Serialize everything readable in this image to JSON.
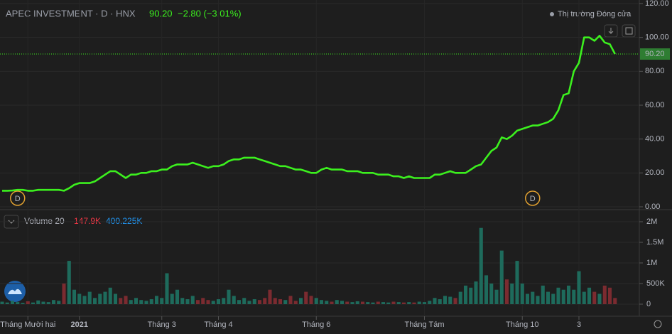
{
  "chart_data": {
    "type": "line",
    "title": "APEC INVESTMENT · D · HNX",
    "last_price": "90.20",
    "change": "−2.80 (−3.01%)",
    "status": "Thị trường Đóng cửa",
    "color": "#3cf01e",
    "ylim": [
      0,
      120
    ],
    "yticks": [
      {
        "value": 0,
        "label": "0.00"
      },
      {
        "value": 20,
        "label": "20.00"
      },
      {
        "value": 40,
        "label": "40.00"
      },
      {
        "value": 60,
        "label": "60.00"
      },
      {
        "value": 80,
        "label": "80.00"
      },
      {
        "value": 100,
        "label": "100.00"
      },
      {
        "value": 120,
        "label": "120.00"
      }
    ],
    "xticks": [
      {
        "value": 5,
        "label": "Tháng Mười hai"
      },
      {
        "value": 15,
        "label": "2021"
      },
      {
        "value": 31,
        "label": "Tháng 3"
      },
      {
        "value": 42,
        "label": "Tháng 4"
      },
      {
        "value": 61,
        "label": "Tháng 6"
      },
      {
        "value": 82,
        "label": "Tháng Tám"
      },
      {
        "value": 101,
        "label": "Tháng 10"
      },
      {
        "value": 112,
        "label": "3"
      }
    ],
    "values": [
      9.5,
      9.5,
      9.6,
      10,
      10,
      9.5,
      9.5,
      10,
      10,
      10,
      10,
      10,
      9.5,
      11,
      13,
      14,
      14,
      14,
      15,
      17,
      19,
      21,
      21,
      19,
      17,
      19,
      19,
      20,
      20,
      21,
      21,
      22,
      22,
      24,
      25,
      25,
      25,
      26,
      25,
      24,
      23,
      24,
      24,
      25,
      27,
      28,
      28,
      29,
      29,
      29,
      28,
      27,
      26,
      25,
      24,
      24,
      23,
      22,
      22,
      21,
      20,
      20,
      22,
      23,
      22,
      22,
      22,
      21,
      21,
      21,
      20,
      20,
      20,
      19,
      19,
      19,
      18,
      18,
      17,
      18,
      17,
      17,
      17,
      17,
      19,
      19,
      20,
      21,
      20,
      20,
      20,
      22,
      24,
      25,
      29,
      33,
      35,
      41,
      40,
      42,
      45,
      46,
      47,
      48,
      48,
      49,
      50,
      52,
      57,
      66,
      67,
      80,
      85,
      100,
      100,
      98,
      101,
      97,
      96,
      90.2
    ],
    "events": [
      {
        "label": "D",
        "index": 3
      },
      {
        "label": "D",
        "index": 103
      }
    ],
    "volume": {
      "title": "Volume 20",
      "last_label": "147.9K",
      "ma_label": "400.225K",
      "up_color": "#1e6b5c",
      "down_color": "#7b2b30",
      "ylim": [
        0,
        2000000
      ],
      "yticks": [
        0,
        {
          "value": 500000,
          "label": "500K"
        },
        {
          "value": 1000000,
          "label": "1M"
        },
        {
          "value": 1500000,
          "label": "1.5M"
        },
        {
          "value": 2000000,
          "label": "2M"
        }
      ],
      "values": [
        60000,
        40000,
        80000,
        50000,
        30000,
        70000,
        40000,
        90000,
        60000,
        50000,
        100000,
        80000,
        500000,
        1050000,
        350000,
        250000,
        200000,
        300000,
        150000,
        250000,
        300000,
        400000,
        250000,
        150000,
        200000,
        100000,
        150000,
        100000,
        80000,
        120000,
        200000,
        150000,
        750000,
        250000,
        350000,
        150000,
        120000,
        200000,
        100000,
        150000,
        100000,
        80000,
        120000,
        150000,
        350000,
        200000,
        100000,
        150000,
        80000,
        120000,
        100000,
        150000,
        350000,
        150000,
        120000,
        100000,
        200000,
        80000,
        150000,
        300000,
        200000,
        150000,
        100000,
        80000,
        60000,
        100000,
        80000,
        60000,
        50000,
        70000,
        60000,
        50000,
        40000,
        60000,
        50000,
        40000,
        60000,
        50000,
        40000,
        50000,
        40000,
        60000,
        50000,
        80000,
        150000,
        120000,
        200000,
        180000,
        150000,
        300000,
        450000,
        400000,
        550000,
        1850000,
        700000,
        500000,
        350000,
        1300000,
        600000,
        500000,
        1050000,
        500000,
        250000,
        300000,
        200000,
        450000,
        300000,
        250000,
        400000,
        350000,
        450000,
        350000,
        800000,
        300000,
        400000,
        300000,
        250000,
        450000,
        400000,
        150000
      ]
    }
  }
}
